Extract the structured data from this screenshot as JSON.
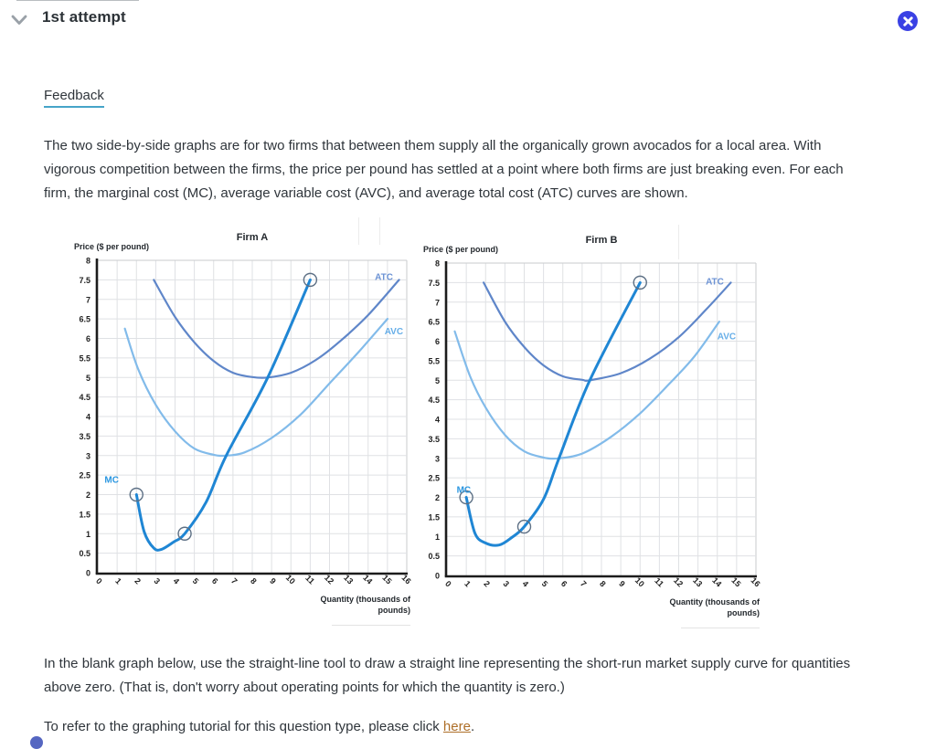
{
  "header": {
    "title": "1st attempt"
  },
  "feedback_label": "Feedback",
  "intro_paragraph": "The two side-by-side graphs are for two firms that between them supply all the organically grown avocados for a local area. With vigorous competition between the firms, the price per pound has settled at a point where both firms are just breaking even. For each firm, the marginal cost (MC), average variable cost (AVC), and average total cost (ATC) curves are shown.",
  "instruction_paragraph": "In the blank graph below, use the straight-line tool to draw a straight line representing the short-run market supply curve for quantities above zero. (That is, don't worry about operating points for which the quantity is zero.)",
  "tutorial": {
    "prefix": "To refer to the graphing tutorial for this question type, please click ",
    "link_label": "here",
    "suffix": "."
  },
  "colors": {
    "close_button_bg": "#3a41e4",
    "feedback_underline": "#46a4c8",
    "link": "#ad6e28",
    "chevron": "#9aa1a8",
    "grid": "#dfe1e4",
    "plot_border": "#c9cbce",
    "axis": "#1c1c1c",
    "marker_stroke": "#5d7085",
    "mc": "#1f86d4",
    "avc": "#82bbea",
    "atc": "#5f86c9"
  },
  "chart_data": [
    {
      "type": "line",
      "title": "Firm A",
      "ylabel": "Price ($ per pound)",
      "xlabel_lines": [
        "Quantity (thousands of",
        "pounds)"
      ],
      "xlim": [
        0,
        16
      ],
      "ylim": [
        0,
        8
      ],
      "grid": true,
      "x_ticks": [
        "0",
        "1",
        "2",
        "3",
        "4",
        "5",
        "6",
        "7",
        "8",
        "9",
        "10",
        "11",
        "12",
        "13",
        "14",
        "15",
        "16"
      ],
      "y_ticks": [
        "8",
        "7.5",
        "7",
        "6.5",
        "6",
        "5.5",
        "5",
        "4.5",
        "4",
        "3.5",
        "3",
        "2.5",
        "2",
        "1.5",
        "1",
        "0.5",
        "0"
      ],
      "series": [
        {
          "name": "ATC",
          "color": "#5f86c9",
          "label_color": "#6b92d4",
          "stroke_width": 2.2,
          "label_xy": [
            14.35,
            7.5
          ],
          "points": [
            [
              2.9,
              7.5
            ],
            [
              4,
              6.55
            ],
            [
              5,
              5.9
            ],
            [
              6,
              5.42
            ],
            [
              7,
              5.12
            ],
            [
              8,
              5.01
            ],
            [
              8.8,
              5
            ],
            [
              10,
              5.12
            ],
            [
              11.3,
              5.45
            ],
            [
              12.6,
              5.95
            ],
            [
              14,
              6.6
            ],
            [
              15.6,
              7.5
            ]
          ]
        },
        {
          "name": "AVC",
          "color": "#82bbea",
          "label_color": "#66aee8",
          "stroke_width": 2.2,
          "label_xy": [
            14.85,
            6.1
          ],
          "points": [
            [
              1.4,
              6.25
            ],
            [
              2.1,
              5.2
            ],
            [
              3,
              4.3
            ],
            [
              4,
              3.62
            ],
            [
              5,
              3.18
            ],
            [
              6,
              3.02
            ],
            [
              6.65,
              3
            ],
            [
              7.6,
              3.08
            ],
            [
              9,
              3.45
            ],
            [
              10.5,
              4.05
            ],
            [
              12,
              4.85
            ],
            [
              13.5,
              5.65
            ],
            [
              15,
              6.5
            ]
          ]
        },
        {
          "name": "MC",
          "color": "#1f86d4",
          "label_color": "#2a96e0",
          "stroke_width": 3,
          "label_xy": [
            0.35,
            2.3
          ],
          "points": [
            [
              2,
              2
            ],
            [
              2.4,
              1.05
            ],
            [
              2.9,
              0.63
            ],
            [
              3.3,
              0.6
            ],
            [
              3.9,
              0.78
            ],
            [
              4.5,
              1
            ],
            [
              5.6,
              1.8
            ],
            [
              6.65,
              3
            ],
            [
              8.8,
              5
            ],
            [
              11,
              7.5
            ]
          ]
        }
      ],
      "markers": [
        [
          2,
          2
        ],
        [
          4.5,
          1
        ],
        [
          11,
          7.5
        ]
      ]
    },
    {
      "type": "line",
      "title": "Firm B",
      "ylabel": "Price ($ per pound)",
      "xlabel_lines": [
        "Quantity (thousands of",
        "pounds)"
      ],
      "xlim": [
        0,
        16
      ],
      "ylim": [
        0,
        8
      ],
      "grid": true,
      "x_ticks": [
        "0",
        "1",
        "2",
        "3",
        "4",
        "5",
        "6",
        "7",
        "8",
        "9",
        "10",
        "11",
        "12",
        "13",
        "14",
        "15",
        "16"
      ],
      "y_ticks": [
        "8",
        "7.5",
        "7",
        "6.5",
        "6",
        "5.5",
        "5",
        "4.5",
        "4",
        "3.5",
        "3",
        "2.5",
        "2",
        "1.5",
        "1",
        "0.5",
        "0"
      ],
      "series": [
        {
          "name": "ATC",
          "color": "#5f86c9",
          "label_color": "#6b92d4",
          "stroke_width": 2.2,
          "label_xy": [
            13.4,
            7.45
          ],
          "points": [
            [
              1.9,
              7.5
            ],
            [
              3,
              6.5
            ],
            [
              4,
              5.85
            ],
            [
              5,
              5.38
            ],
            [
              6,
              5.1
            ],
            [
              7,
              5.01
            ],
            [
              7.4,
              5
            ],
            [
              9,
              5.18
            ],
            [
              10.5,
              5.55
            ],
            [
              12,
              6.1
            ],
            [
              13.4,
              6.8
            ],
            [
              14.7,
              7.5
            ]
          ]
        },
        {
          "name": "AVC",
          "color": "#82bbea",
          "label_color": "#66aee8",
          "stroke_width": 2.2,
          "label_xy": [
            14.0,
            6.05
          ],
          "points": [
            [
              0.4,
              6.25
            ],
            [
              1.2,
              5.1
            ],
            [
              2,
              4.3
            ],
            [
              3,
              3.6
            ],
            [
              4,
              3.18
            ],
            [
              5,
              3.02
            ],
            [
              5.8,
              3
            ],
            [
              7,
              3.12
            ],
            [
              8.5,
              3.55
            ],
            [
              10,
              4.15
            ],
            [
              11.5,
              4.9
            ],
            [
              12.8,
              5.6
            ],
            [
              14.1,
              6.5
            ]
          ]
        },
        {
          "name": "MC",
          "color": "#1f86d4",
          "label_color": "#2a96e0",
          "stroke_width": 3,
          "label_xy": [
            0.5,
            2.12
          ],
          "points": [
            [
              1,
              2
            ],
            [
              1.45,
              1.08
            ],
            [
              2,
              0.83
            ],
            [
              2.7,
              0.78
            ],
            [
              3.35,
              0.97
            ],
            [
              4,
              1.25
            ],
            [
              5,
              1.95
            ],
            [
              5.8,
              3
            ],
            [
              7.4,
              5
            ],
            [
              10,
              7.5
            ]
          ]
        }
      ],
      "markers": [
        [
          1,
          2
        ],
        [
          4,
          1.25
        ],
        [
          10,
          7.5
        ]
      ]
    }
  ]
}
